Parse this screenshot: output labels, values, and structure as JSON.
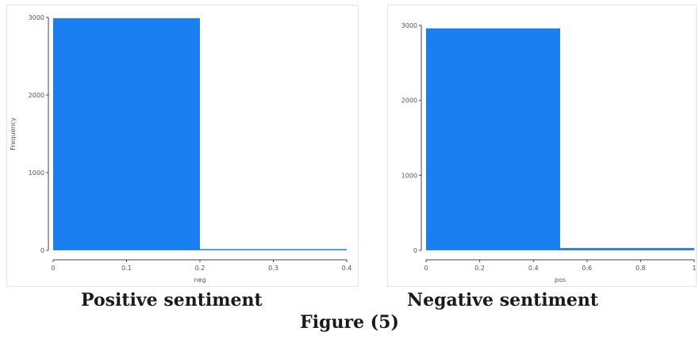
{
  "chart_data": [
    {
      "type": "bar",
      "style": "histogram",
      "bins": [
        [
          0,
          0.2
        ],
        [
          0.2,
          0.4
        ]
      ],
      "values": [
        2990,
        15
      ],
      "xlabel": "neg",
      "ylabel": "Frequency",
      "xlim": [
        0,
        0.4
      ],
      "ylim": [
        0,
        3000
      ],
      "xticks": [
        "0",
        "0.1",
        "0.2",
        "0.3",
        "0.4"
      ],
      "yticks": [
        "0",
        "1000",
        "2000",
        "3000"
      ],
      "bar_color": "#1a7ff0",
      "grid": false,
      "caption": "Positive sentiment"
    },
    {
      "type": "bar",
      "style": "histogram",
      "bins": [
        [
          0,
          0.5
        ],
        [
          0.5,
          1
        ]
      ],
      "values": [
        2960,
        30
      ],
      "xlabel": "pos",
      "ylabel": "",
      "xlim": [
        0,
        1
      ],
      "ylim": [
        0,
        3000
      ],
      "xticks": [
        "0",
        "0.2",
        "0.4",
        "0.6",
        "0.8",
        "1"
      ],
      "yticks": [
        "0",
        "1000",
        "2000",
        "3000"
      ],
      "bar_color": "#1a7ff0",
      "grid": false,
      "caption": "Negative sentiment"
    }
  ],
  "figure_caption": "Figure (5)"
}
